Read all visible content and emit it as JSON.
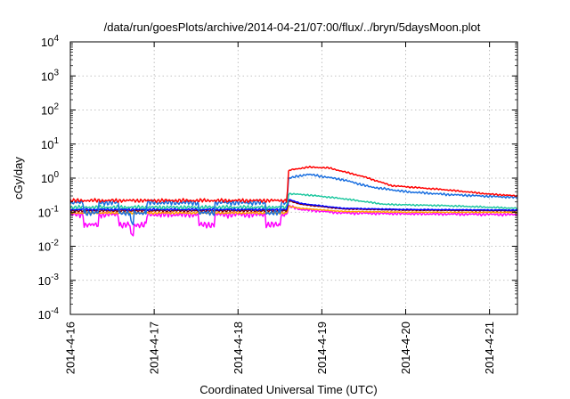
{
  "chart_data": {
    "type": "line",
    "title": "/data/run/goesPlots/archive/2014-04-21/07:00/flux/../bryn/5daysMoon.plot",
    "xlabel": "Coordinated Universal Time (UTC)",
    "ylabel": "cGy/day",
    "x_range": [
      "2014-04-16T00:00",
      "2014-04-21T08:00"
    ],
    "ylim": [
      0.0001,
      10000
    ],
    "y_scale": "log",
    "grid": true,
    "legend": "none",
    "x_ticks": [
      {
        "value": "2014-04-16T00:00",
        "label": "2014-4-16"
      },
      {
        "value": "2014-04-17T00:00",
        "label": "2014-4-17"
      },
      {
        "value": "2014-04-18T00:00",
        "label": "2014-4-18"
      },
      {
        "value": "2014-04-19T00:00",
        "label": "2014-4-19"
      },
      {
        "value": "2014-04-20T00:00",
        "label": "2014-4-20"
      },
      {
        "value": "2014-04-21T00:00",
        "label": "2014-4-21"
      }
    ],
    "y_ticks": [
      {
        "value": 0.0001,
        "exp": "-4"
      },
      {
        "value": 0.001,
        "exp": "-3"
      },
      {
        "value": 0.01,
        "exp": "-2"
      },
      {
        "value": 0.1,
        "exp": "-1"
      },
      {
        "value": 1,
        "exp": "0"
      },
      {
        "value": 10,
        "exp": "1"
      },
      {
        "value": 100,
        "exp": "2"
      },
      {
        "value": 1000,
        "exp": "3"
      },
      {
        "value": 10000,
        "exp": "4"
      }
    ],
    "series": [
      {
        "color": "#ff00ff",
        "noise": 0.24,
        "dips": true,
        "points": [
          [
            "2014-04-16T00:00",
            0.085
          ],
          [
            "2014-04-18T14:00",
            0.085
          ],
          [
            "2014-04-18T14:30",
            0.15
          ],
          [
            "2014-04-18T18:00",
            0.12
          ],
          [
            "2014-04-19T06:00",
            0.095
          ],
          [
            "2014-04-20T00:00",
            0.09
          ],
          [
            "2014-04-21T08:00",
            0.085
          ]
        ]
      },
      {
        "color": "#ffa500",
        "noise": 0.08,
        "dips": false,
        "points": [
          [
            "2014-04-16T00:00",
            0.095
          ],
          [
            "2014-04-18T14:00",
            0.095
          ],
          [
            "2014-04-18T14:30",
            0.15
          ],
          [
            "2014-04-18T18:00",
            0.13
          ],
          [
            "2014-04-19T06:00",
            0.105
          ],
          [
            "2014-04-20T00:00",
            0.1
          ],
          [
            "2014-04-21T08:00",
            0.098
          ]
        ]
      },
      {
        "color": "#8b0000",
        "noise": 0.08,
        "dips": false,
        "points": [
          [
            "2014-04-16T00:00",
            0.11
          ],
          [
            "2014-04-18T14:00",
            0.11
          ],
          [
            "2014-04-18T14:30",
            0.22
          ],
          [
            "2014-04-18T18:00",
            0.17
          ],
          [
            "2014-04-19T06:00",
            0.125
          ],
          [
            "2014-04-20T00:00",
            0.115
          ],
          [
            "2014-04-21T08:00",
            0.11
          ]
        ]
      },
      {
        "color": "#0000ff",
        "noise": 0.08,
        "dips": false,
        "points": [
          [
            "2014-04-16T00:00",
            0.12
          ],
          [
            "2014-04-18T14:00",
            0.12
          ],
          [
            "2014-04-18T14:30",
            0.24
          ],
          [
            "2014-04-18T18:00",
            0.18
          ],
          [
            "2014-04-19T06:00",
            0.13
          ],
          [
            "2014-04-20T00:00",
            0.12
          ],
          [
            "2014-04-21T08:00",
            0.115
          ]
        ]
      },
      {
        "color": "#20c8a0",
        "noise": 0.14,
        "dips": false,
        "points": [
          [
            "2014-04-16T00:00",
            0.14
          ],
          [
            "2014-04-18T14:00",
            0.14
          ],
          [
            "2014-04-18T14:30",
            0.35
          ],
          [
            "2014-04-18T20:00",
            0.32
          ],
          [
            "2014-04-19T06:00",
            0.25
          ],
          [
            "2014-04-19T18:00",
            0.17
          ],
          [
            "2014-04-20T12:00",
            0.155
          ],
          [
            "2014-04-21T08:00",
            0.13
          ]
        ]
      },
      {
        "color": "#1a6fe0",
        "noise": 0.2,
        "dips": true,
        "points": [
          [
            "2014-04-16T00:00",
            0.19
          ],
          [
            "2014-04-18T14:00",
            0.19
          ],
          [
            "2014-04-18T14:30",
            1.0
          ],
          [
            "2014-04-18T20:00",
            1.3
          ],
          [
            "2014-04-19T06:00",
            0.9
          ],
          [
            "2014-04-19T14:00",
            0.55
          ],
          [
            "2014-04-20T00:00",
            0.4
          ],
          [
            "2014-04-20T12:00",
            0.33
          ],
          [
            "2014-04-21T08:00",
            0.27
          ]
        ]
      },
      {
        "color": "#ff0000",
        "noise": 0.14,
        "dips": false,
        "points": [
          [
            "2014-04-16T00:00",
            0.22
          ],
          [
            "2014-04-18T14:00",
            0.22
          ],
          [
            "2014-04-18T14:30",
            1.7
          ],
          [
            "2014-04-18T20:00",
            2.1
          ],
          [
            "2014-04-19T02:00",
            2.0
          ],
          [
            "2014-04-19T12:00",
            1.1
          ],
          [
            "2014-04-19T20:00",
            0.6
          ],
          [
            "2014-04-20T12:00",
            0.45
          ],
          [
            "2014-04-21T00:00",
            0.34
          ],
          [
            "2014-04-21T08:00",
            0.3
          ]
        ]
      }
    ]
  }
}
